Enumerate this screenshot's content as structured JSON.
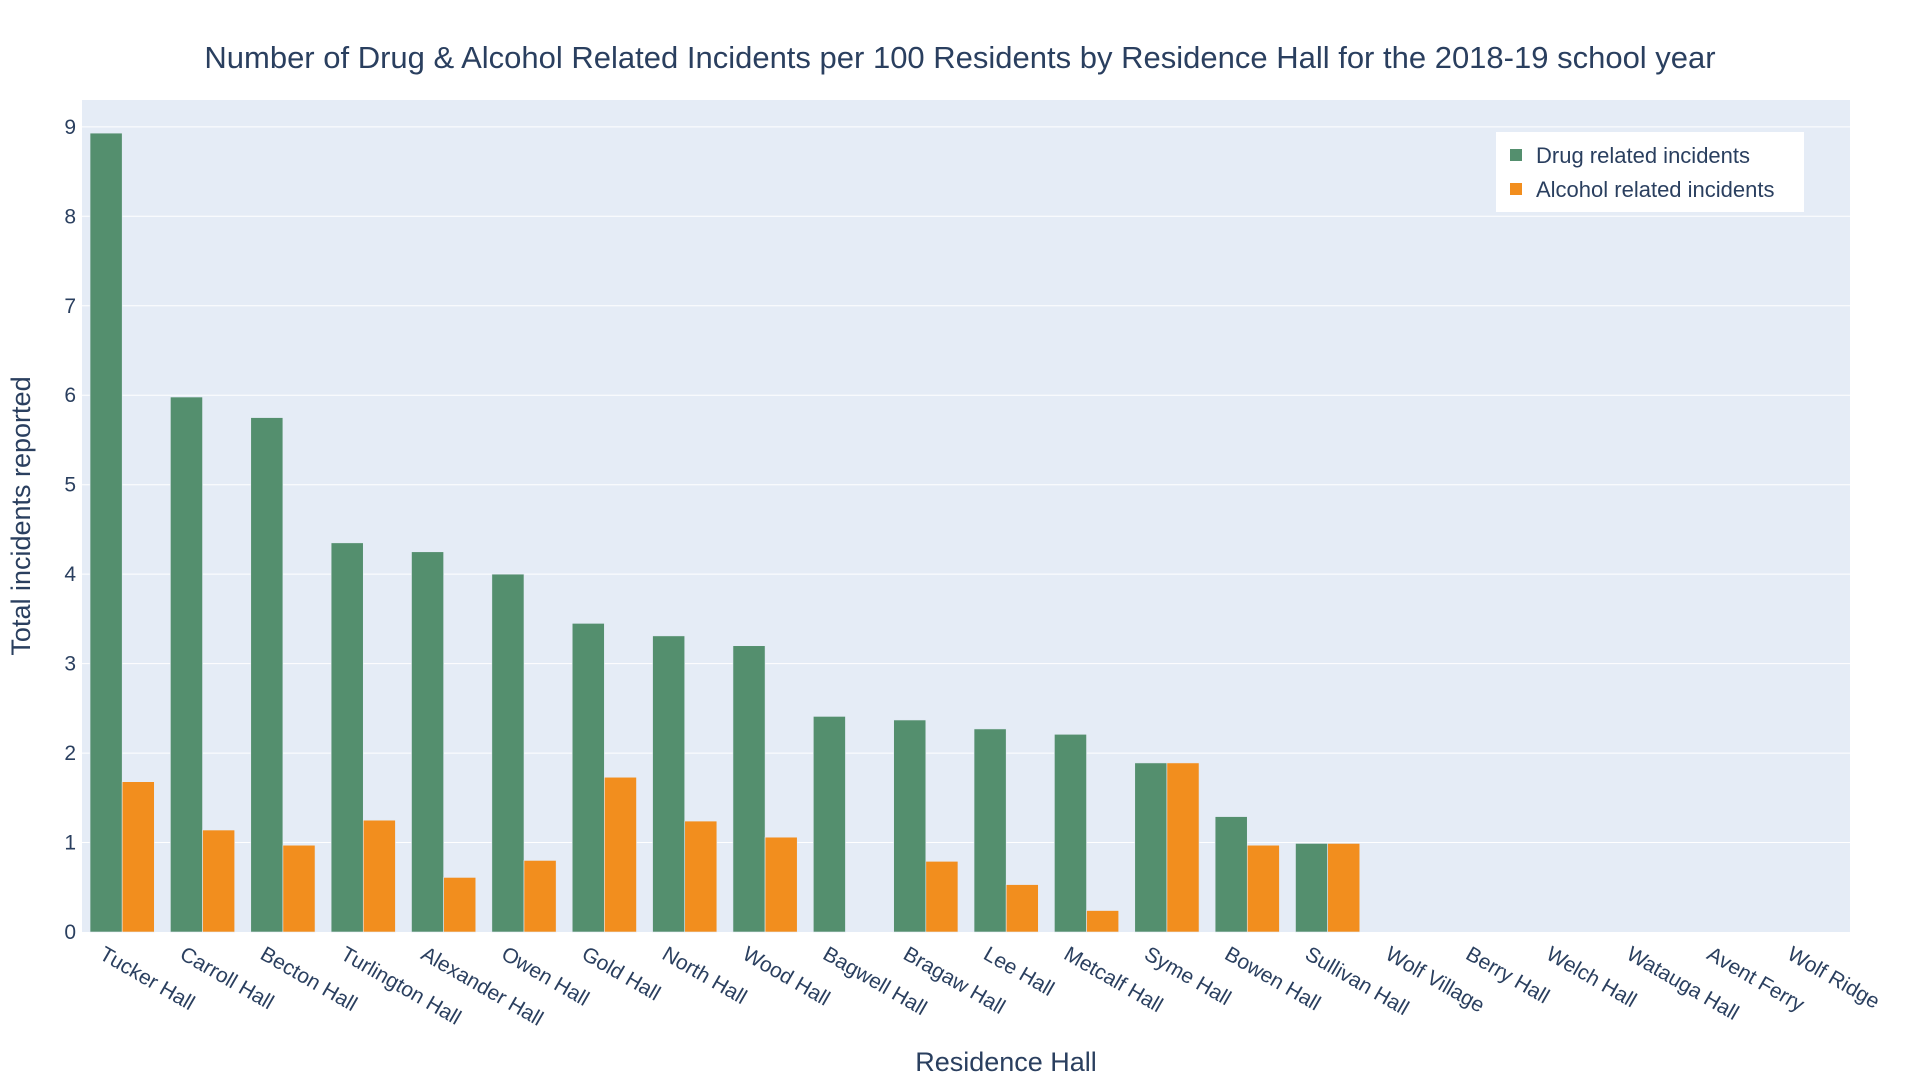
{
  "chart_data": {
    "type": "bar",
    "title": "Number of Drug & Alcohol Related Incidents per 100 Residents by Residence Hall for the 2018-19 school year",
    "xlabel": "Residence Hall",
    "ylabel": "Total incidents reported",
    "ylim": [
      0,
      9.3
    ],
    "yticks": [
      0,
      1,
      2,
      3,
      4,
      5,
      6,
      7,
      8,
      9
    ],
    "grid": true,
    "legend_position": "top-right",
    "categories": [
      "Tucker Hall",
      "Carroll Hall",
      "Becton Hall",
      "Turlington Hall",
      "Alexander Hall",
      "Owen Hall",
      "Gold Hall",
      "North Hall",
      "Wood Hall",
      "Bagwell Hall",
      "Bragaw Hall",
      "Lee Hall",
      "Metcalf Hall",
      "Syme Hall",
      "Bowen Hall",
      "Sullivan Hall",
      "Wolf Village",
      "Berry Hall",
      "Welch Hall",
      "Watauga Hall",
      "Avent Ferry",
      "Wolf Ridge"
    ],
    "series": [
      {
        "name": "Drug related incidents",
        "color": "#548f6e",
        "values": [
          8.93,
          5.98,
          5.75,
          4.35,
          4.25,
          4.0,
          3.45,
          3.31,
          3.2,
          2.41,
          2.37,
          2.27,
          2.21,
          1.89,
          1.29,
          0.99,
          0,
          0,
          0,
          0,
          0,
          0
        ]
      },
      {
        "name": "Alcohol related incidents",
        "color": "#f28e1e",
        "values": [
          1.68,
          1.14,
          0.97,
          1.25,
          0.61,
          0.8,
          1.73,
          1.24,
          1.06,
          0,
          0.79,
          0.53,
          0.24,
          1.89,
          0.97,
          0.99,
          0,
          0,
          0,
          0,
          0,
          0
        ]
      }
    ]
  },
  "plot_bg": "#e5ecf6",
  "grid_color": "#ffffff",
  "text_color": "#2a3f5f"
}
